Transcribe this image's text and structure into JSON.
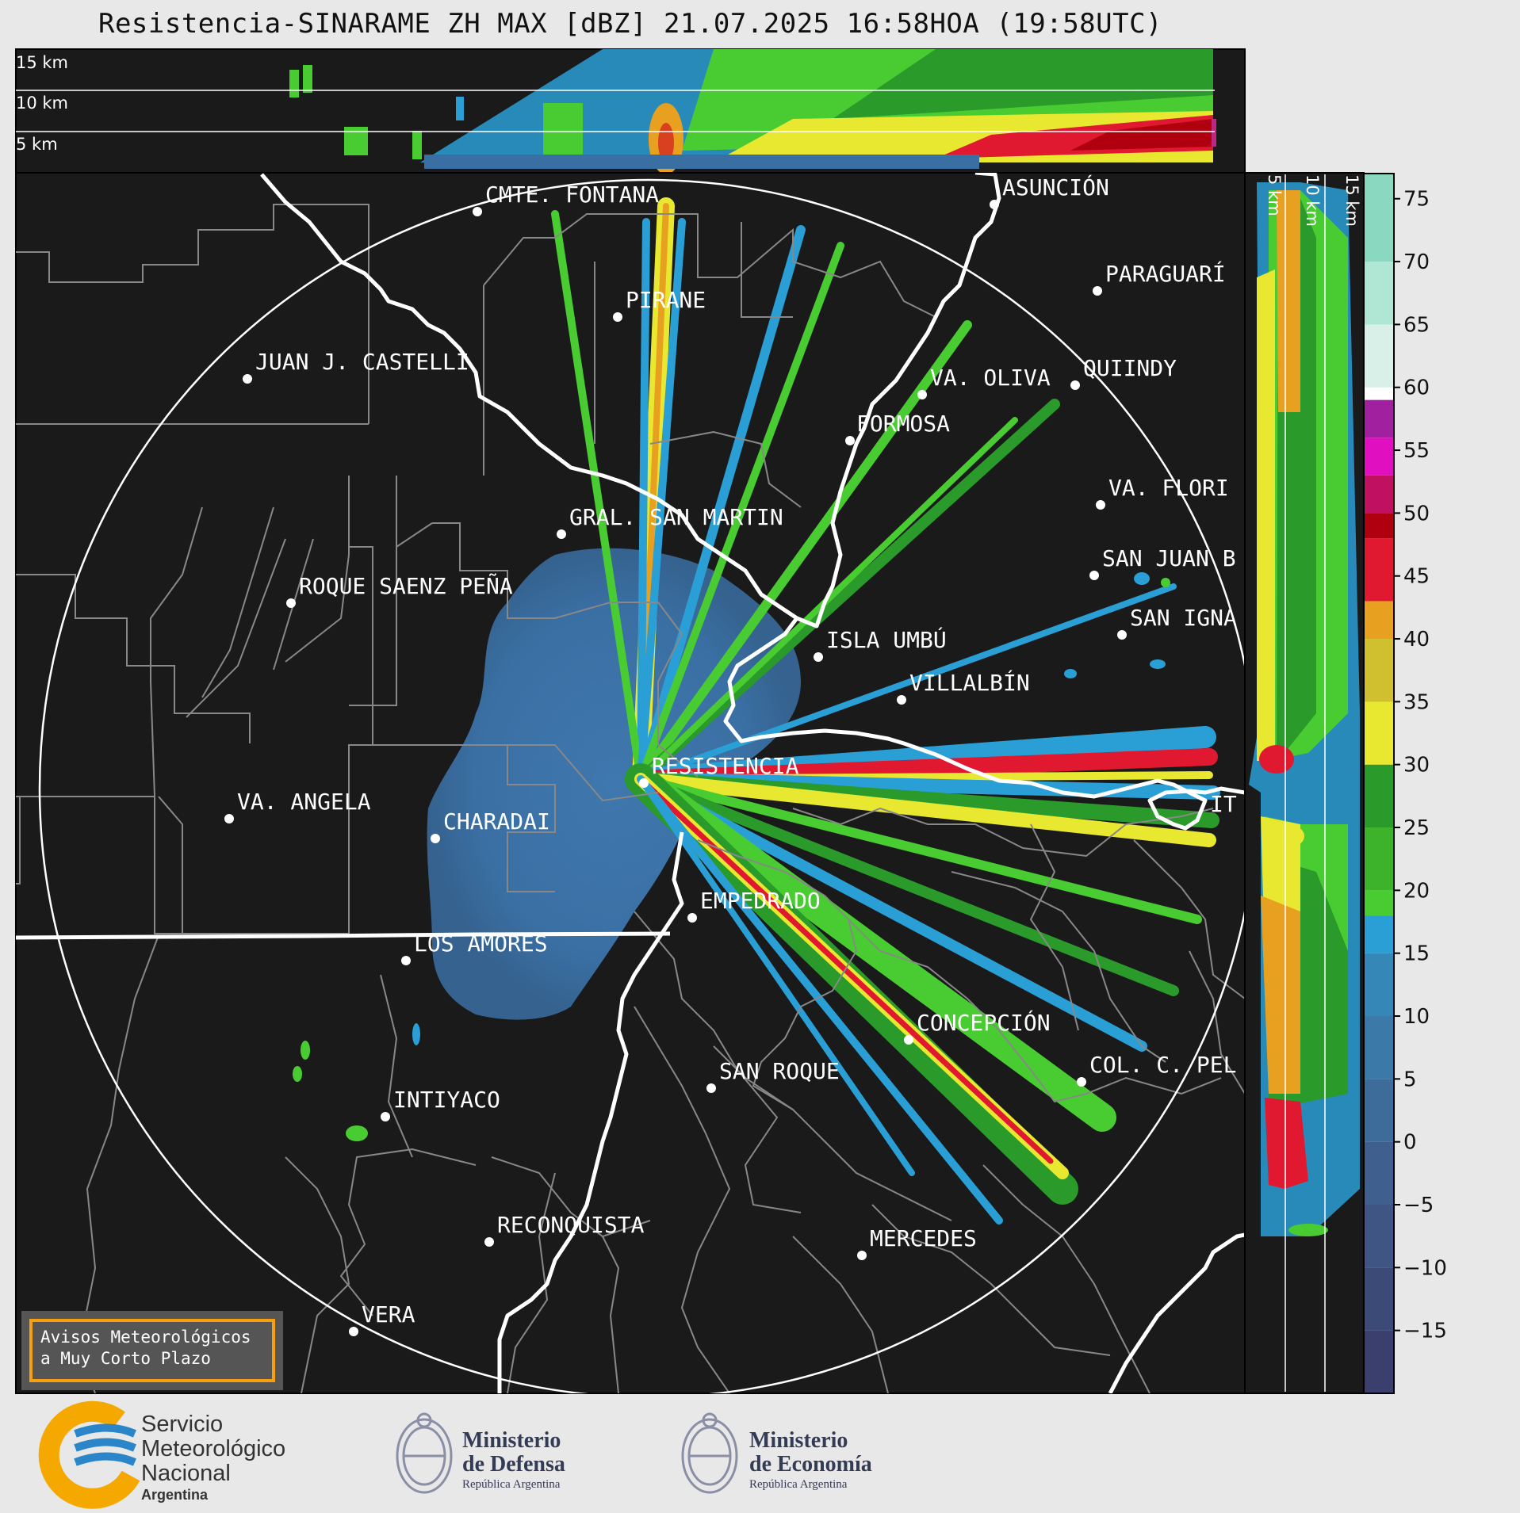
{
  "title": "Resistencia-SINARAME ZH MAX [dBZ] 21.07.2025 16:58HOA (19:58UTC)",
  "top_panel": {
    "km_labels": [
      "15 km",
      "10 km",
      "5 km"
    ]
  },
  "side_panel": {
    "km_labels": [
      "5 km",
      "10 km",
      "15 km"
    ]
  },
  "colorbar": {
    "unit": "dBZ",
    "ticks": [
      "75",
      "70",
      "65",
      "60",
      "55",
      "50",
      "45",
      "40",
      "35",
      "30",
      "25",
      "20",
      "15",
      "10",
      "5",
      "0",
      "−5",
      "−10",
      "−15"
    ]
  },
  "cities": [
    {
      "name": "ASUNCIÓN"
    },
    {
      "name": "CMTE. FONTANA"
    },
    {
      "name": "PARAGUARÍ"
    },
    {
      "name": "PIRANE"
    },
    {
      "name": "JUAN J. CASTELLI"
    },
    {
      "name": "VA. OLIVA"
    },
    {
      "name": "QUIINDY"
    },
    {
      "name": "FORMOSA"
    },
    {
      "name": "VA. FLORI"
    },
    {
      "name": "GRAL. SAN MARTIN"
    },
    {
      "name": "SAN JUAN B"
    },
    {
      "name": "ROQUE SAENZ PEÑA"
    },
    {
      "name": "SAN IGNA"
    },
    {
      "name": "ISLA UMBÚ"
    },
    {
      "name": "VILLALBÍN"
    },
    {
      "name": "RESISTENCIA"
    },
    {
      "name": "VA. ANGELA"
    },
    {
      "name": "CHARADAI"
    },
    {
      "name": "IT"
    },
    {
      "name": "EMPEDRADO"
    },
    {
      "name": "LOS AMORES"
    },
    {
      "name": "CONCEPCIÓN"
    },
    {
      "name": "SAN ROQUE"
    },
    {
      "name": "COL. C. PEL"
    },
    {
      "name": "INTIYACO"
    },
    {
      "name": "RECONQUISTA"
    },
    {
      "name": "MERCEDES"
    },
    {
      "name": "VERA"
    }
  ],
  "notice": {
    "line1": "Avisos Meteorológicos",
    "line2": "a Muy Corto Plazo"
  },
  "logos": {
    "smn": {
      "line1": "Servicio",
      "line2": "Meteorológico",
      "line3": "Nacional",
      "line4": "Argentina"
    },
    "defensa": {
      "line1": "Ministerio",
      "line2": "de Defensa",
      "line3": "República Argentina"
    },
    "economia": {
      "line1": "Ministerio",
      "line2": "de Economía",
      "line3": "República Argentina"
    }
  }
}
